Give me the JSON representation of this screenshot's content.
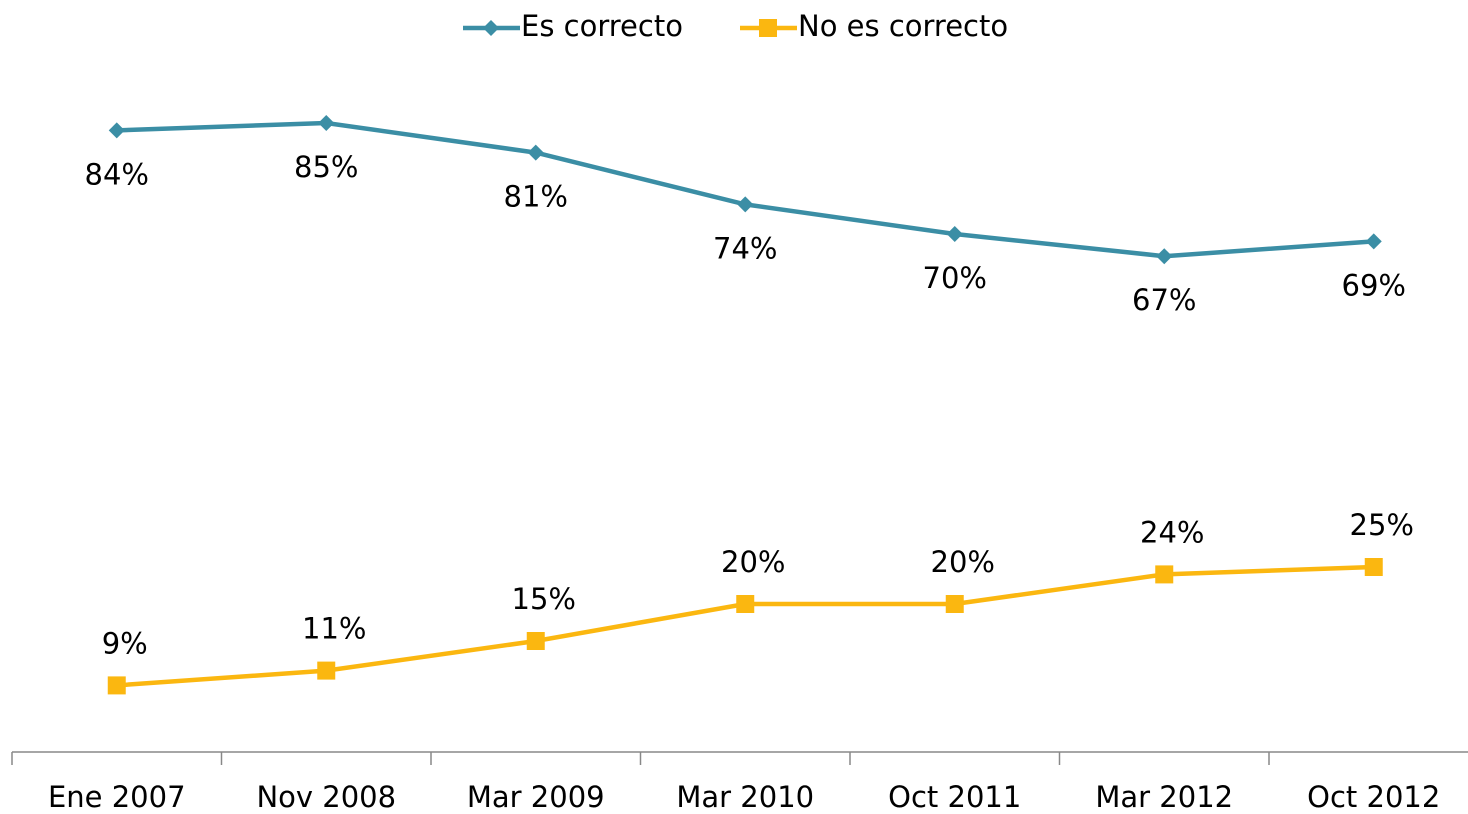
{
  "chart_data": {
    "type": "line",
    "categories": [
      "Ene 2007",
      "Nov 2008",
      "Mar 2009",
      "Mar 2010",
      "Oct 2011",
      "Mar 2012",
      "Oct 2012"
    ],
    "series": [
      {
        "name": "Es correcto",
        "color": "#3b8ea5",
        "marker": "diamond",
        "values": [
          84,
          85,
          81,
          74,
          70,
          67,
          69
        ],
        "value_labels": [
          "84%",
          "85%",
          "81%",
          "74%",
          "70%",
          "67%",
          "69%"
        ]
      },
      {
        "name": "No es correcto",
        "color": "#fbb710",
        "marker": "square",
        "values": [
          9,
          11,
          15,
          20,
          20,
          24,
          25
        ],
        "value_labels": [
          "9%",
          "11%",
          "15%",
          "20%",
          "20%",
          "24%",
          "25%"
        ]
      }
    ],
    "ylim": [
      0,
      100
    ],
    "legend": "top"
  }
}
